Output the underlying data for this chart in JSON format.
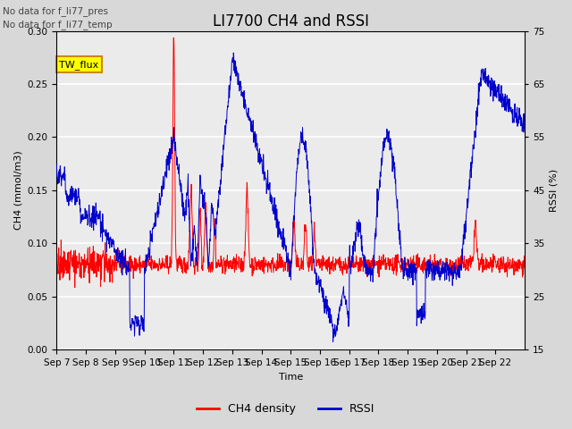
{
  "title": "LI7700 CH4 and RSSI",
  "xlabel": "Time",
  "ylabel_left": "CH4 (mmol/m3)",
  "ylabel_right": "RSSI (%)",
  "annotations": [
    "No data for f_li77_pres",
    "No data for f_li77_temp"
  ],
  "legend_box_label": "TW_flux",
  "legend_box_color": "#ffff00",
  "legend_box_edge": "#cc8800",
  "ch4_color": "#ff0000",
  "rssi_color": "#0000cc",
  "ylim_left": [
    0.0,
    0.3
  ],
  "ylim_right": [
    15,
    75
  ],
  "yticks_left": [
    0.0,
    0.05,
    0.1,
    0.15,
    0.2,
    0.25,
    0.3
  ],
  "yticks_right": [
    15,
    25,
    35,
    45,
    55,
    65,
    75
  ],
  "xtick_labels": [
    "Sep 7",
    "Sep 8",
    "Sep 9",
    "Sep 10",
    "Sep 11",
    "Sep 12",
    "Sep 13",
    "Sep 14",
    "Sep 15",
    "Sep 16",
    "Sep 17",
    "Sep 18",
    "Sep 19",
    "Sep 20",
    "Sep 21",
    "Sep 22"
  ],
  "background_color": "#d8d8d8",
  "plot_bg_color": "#ebebeb",
  "grid_color": "#ffffff",
  "title_fontsize": 12,
  "label_fontsize": 8,
  "tick_fontsize": 7.5
}
